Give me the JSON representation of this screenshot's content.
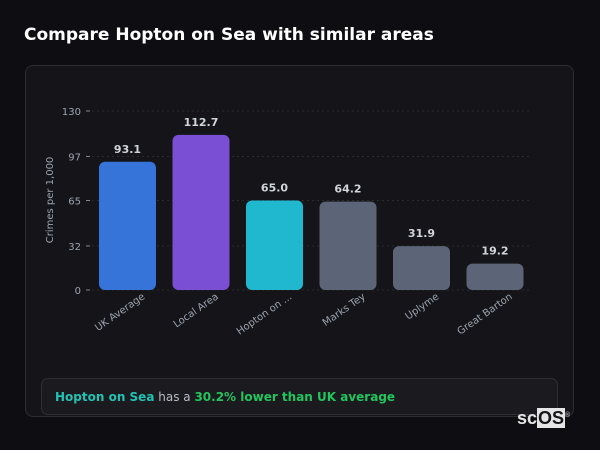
{
  "header": {
    "title": "Compare Hopton on Sea with similar areas"
  },
  "chart_data": {
    "type": "bar",
    "title": "",
    "xlabel": "",
    "ylabel": "Crimes per 1,000",
    "ylim": [
      0,
      130
    ],
    "yticks": [
      0,
      32,
      65,
      97,
      130
    ],
    "grid": true,
    "categories": [
      "UK Average",
      "Local Area",
      "Hopton on ...",
      "Marks Tey",
      "Uplyme",
      "Great Barton"
    ],
    "values": [
      93.1,
      112.7,
      65.0,
      64.2,
      31.9,
      19.2
    ],
    "value_labels": [
      "93.1",
      "112.7",
      "65.0",
      "64.2",
      "31.9",
      "19.2"
    ],
    "colors": [
      "#3674d9",
      "#7a4fd4",
      "#20b8cf",
      "#5b6577",
      "#5b6577",
      "#5b6577"
    ]
  },
  "summary": {
    "area": "Hopton on Sea",
    "middle": " has a ",
    "comparison": "30.2% lower than UK average"
  },
  "logo": {
    "text_sc": "sc",
    "text_os": "OS",
    "mark": "®"
  }
}
